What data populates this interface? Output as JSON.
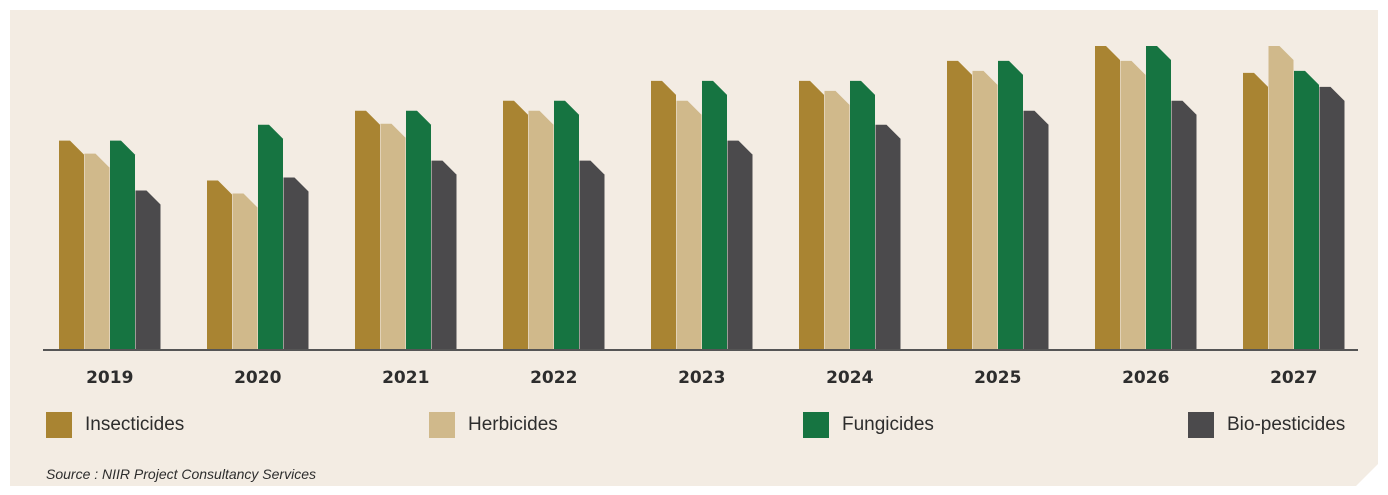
{
  "colors": {
    "Insecticides": "#a98432",
    "Herbicides": "#d0b98b",
    "Fungicides": "#167441",
    "Bio-pesticides": "#4b4a4c"
  },
  "legend": {
    "insecticides": "Insecticides",
    "herbicides": "Herbicides",
    "fungicides": "Fungicides",
    "biopesticides": "Bio-pesticides"
  },
  "source": "Source : NIIR Project Consultancy Services",
  "chart_data": {
    "type": "bar",
    "categories": [
      "2019",
      "2020",
      "2021",
      "2022",
      "2023",
      "2024",
      "2025",
      "2026",
      "2027"
    ],
    "ylim": [
      0,
      310
    ],
    "grid": false,
    "legend_position": "bottom",
    "series": [
      {
        "name": "Insecticides",
        "values": [
          210,
          170,
          240,
          250,
          270,
          270,
          290,
          305,
          278
        ]
      },
      {
        "name": "Herbicides",
        "values": [
          197,
          157,
          227,
          240,
          250,
          260,
          280,
          290,
          305
        ]
      },
      {
        "name": "Fungicides",
        "values": [
          210,
          226,
          240,
          250,
          270,
          270,
          290,
          305,
          280
        ]
      },
      {
        "name": "Bio-pesticides",
        "values": [
          160,
          173,
          190,
          190,
          210,
          226,
          240,
          250,
          264
        ]
      }
    ]
  }
}
